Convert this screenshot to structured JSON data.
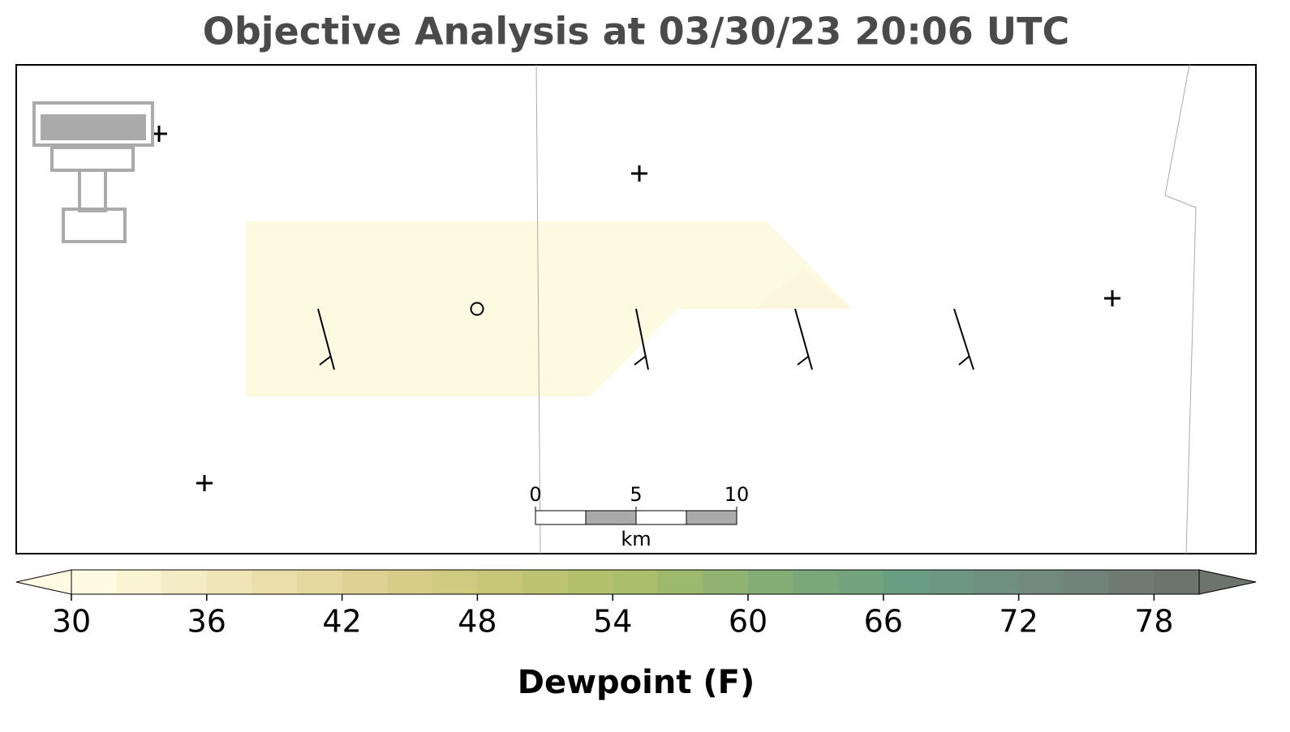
{
  "chart_data": {
    "type": "colorbar",
    "title": "Objective Analysis at 03/30/23 20:06 UTC",
    "colorbar_label": "Dewpoint (F)",
    "xlim": [
      30,
      80
    ],
    "xticks": [
      30,
      36,
      42,
      48,
      54,
      60,
      66,
      72,
      78
    ],
    "bins": 25,
    "colors": [
      "#fffbe2",
      "#efe5b6",
      "#dfd193",
      "#c6c676",
      "#a9bf69",
      "#84ad76",
      "#6a9e83",
      "#72897f",
      "#6d736d"
    ],
    "scale_bar": {
      "xlim": [
        0,
        10
      ],
      "xticks": [
        0,
        5,
        10
      ],
      "unit": "km"
    }
  }
}
